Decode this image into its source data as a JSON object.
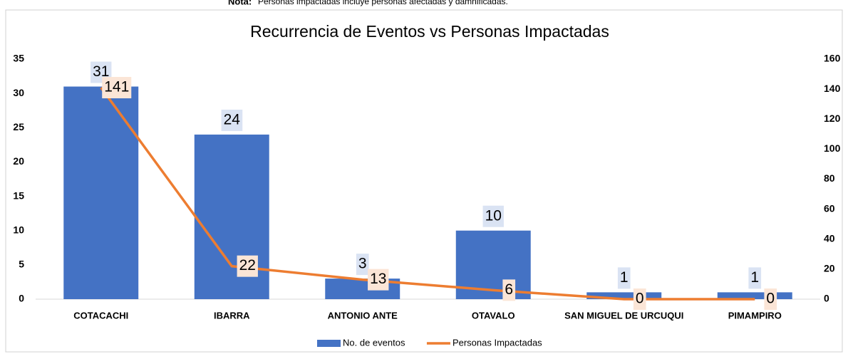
{
  "chart_data": {
    "type": "bar",
    "note_label": "Nota:",
    "note": "Personas impactadas incluye personas afectadas y damnificadas.",
    "title": "Recurrencia de Eventos vs Personas Impactadas",
    "categories": [
      "COTACACHI",
      "IBARRA",
      "ANTONIO ANTE",
      "OTAVALO",
      "SAN MIGUEL DE URCUQUI",
      "PIMAMPIRO"
    ],
    "series": [
      {
        "name": "No. de eventos",
        "color": "#4472c4",
        "type": "bar",
        "label_bg": "#dae3f3",
        "values": [
          31,
          24,
          3,
          10,
          1,
          1
        ]
      },
      {
        "name": "Personas Impactadas",
        "color": "#ed7d31",
        "type": "line",
        "axis": "y2",
        "label_bg": "#fbe5d6",
        "values": [
          141,
          22,
          13,
          6,
          0,
          0
        ]
      }
    ],
    "ylim": [
      0,
      35
    ],
    "yticks": [
      0,
      5,
      10,
      15,
      20,
      25,
      30,
      35
    ],
    "y2lim": [
      0,
      160
    ],
    "y2ticks": [
      0,
      20,
      40,
      60,
      80,
      100,
      120,
      140,
      160
    ],
    "grid": false,
    "legend": "bottom"
  }
}
